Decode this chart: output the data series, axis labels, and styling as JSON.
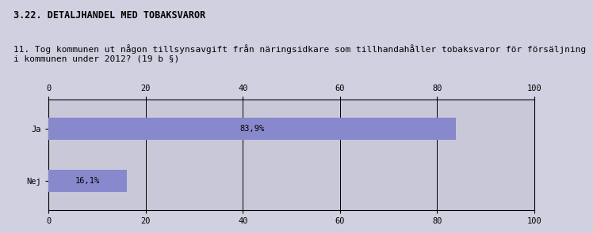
{
  "title1": "3.22. DETALJHANDEL MED TOBAKSVAROR",
  "title2": "11. Tog kommunen ut någon tillsynsavgift från näringsidkare som tillhandahåller tobaksvaror för försäljning\ni kommunen under 2012? (19 b §)",
  "categories": [
    "Ja",
    "Nej"
  ],
  "values": [
    83.9,
    16.1
  ],
  "labels": [
    "83,9%",
    "16,1%"
  ],
  "bar_color": "#8888cc",
  "chart_bg": "#c8c8d8",
  "outer_bg": "#d0d0e0",
  "xlim": [
    0,
    100
  ],
  "xticks": [
    0,
    20,
    40,
    60,
    80,
    100
  ],
  "title1_fontsize": 8.5,
  "title2_fontsize": 8.0,
  "tick_fontsize": 7.5,
  "label_fontsize": 7.5,
  "cat_fontsize": 7.5
}
